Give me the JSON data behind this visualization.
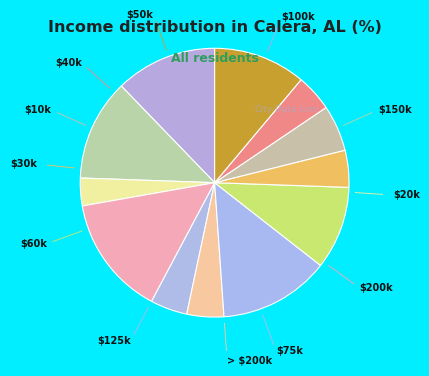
{
  "title": "Income distribution in Calera, AL (%)",
  "subtitle": "All residents",
  "title_color": "#222222",
  "subtitle_color": "#2e9e5e",
  "bg_cyan": "#00eeff",
  "bg_chart": "#e8f5ee",
  "watermark": "City-Data.com",
  "slices": [
    {
      "label": "$100k",
      "value": 11,
      "color": "#b8a8e0"
    },
    {
      "label": "$150k",
      "value": 11,
      "color": "#b8d4a8"
    },
    {
      "label": "$20k",
      "value": 3,
      "color": "#f0f0a0"
    },
    {
      "label": "$200k",
      "value": 13,
      "color": "#f4a8b8"
    },
    {
      "label": "$75k",
      "value": 4,
      "color": "#b0bce8"
    },
    {
      "label": "> $200k",
      "value": 4,
      "color": "#f8c8a0"
    },
    {
      "label": "$125k",
      "value": 12,
      "color": "#a8b8f0"
    },
    {
      "label": "$60k",
      "value": 9,
      "color": "#c8e870"
    },
    {
      "label": "$30k",
      "value": 4,
      "color": "#f0c060"
    },
    {
      "label": "$10k",
      "value": 5,
      "color": "#c8c0a8"
    },
    {
      "label": "$40k",
      "value": 4,
      "color": "#f08888"
    },
    {
      "label": "$50k",
      "value": 10,
      "color": "#c8a030"
    }
  ],
  "label_fontsize": 7.0,
  "label_color": "#111111",
  "title_fontsize": 11.5,
  "subtitle_fontsize": 9.0
}
